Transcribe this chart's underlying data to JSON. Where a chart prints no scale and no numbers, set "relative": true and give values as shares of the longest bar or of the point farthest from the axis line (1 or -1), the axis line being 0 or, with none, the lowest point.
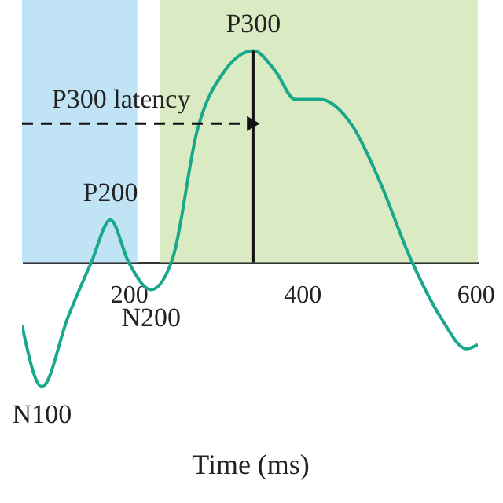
{
  "chart_data": {
    "type": "line",
    "xlabel": "Time (ms)",
    "relative": true,
    "x": [
      77,
      100,
      130,
      157,
      179,
      200,
      226,
      251,
      279,
      310,
      344,
      370,
      392,
      421,
      459,
      490,
      525,
      560,
      590,
      603
    ],
    "series": [
      {
        "color": "#1aa88a",
        "values": [
          -0.3,
          -0.59,
          -0.26,
          0,
          0.2,
          0,
          -0.13,
          0.02,
          0.62,
          0.9,
          1,
          0.9,
          0.77,
          0.77,
          0.64,
          0.38,
          0.02,
          -0.26,
          -0.41,
          -0.39
        ]
      }
    ],
    "xlim": [
      77,
      603
    ],
    "xticks": [
      200,
      400,
      600
    ],
    "bands": [
      {
        "axis": "x",
        "from": 77,
        "to": 210,
        "color": "#b5def3"
      },
      {
        "axis": "x",
        "from": 236,
        "to": 603,
        "color": "#d3e6b8"
      }
    ],
    "ref_lines": [
      {
        "axis": "x",
        "value": 344,
        "label": "P300 latency",
        "color": "#111111"
      }
    ],
    "annotations": [
      {
        "text": "N100",
        "x": 100,
        "y": -0.59
      },
      {
        "text": "P200",
        "x": 179,
        "y": 0.2
      },
      {
        "text": "N200",
        "x": 226,
        "y": -0.13
      },
      {
        "text": "P300",
        "x": 344,
        "y": 1
      }
    ],
    "grid": false
  }
}
